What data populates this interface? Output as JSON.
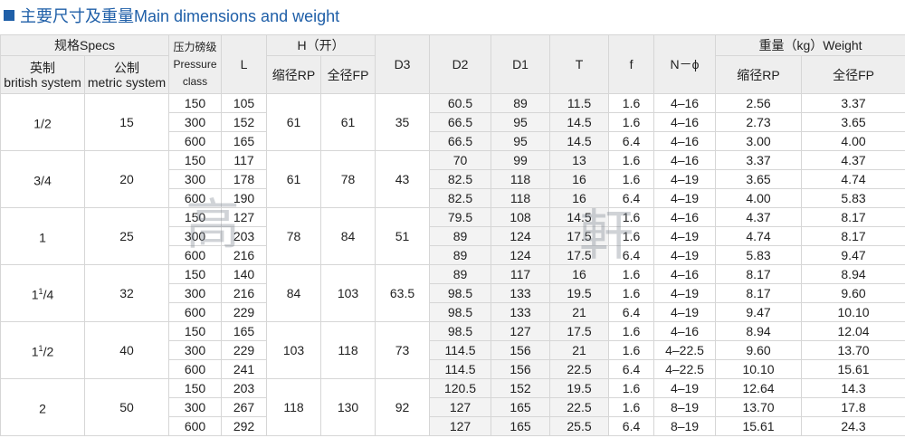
{
  "title": "主要尺寸及重量Main dimensions and weight",
  "headers": {
    "specs": "规格Specs",
    "british": "英制",
    "british_en": "british system",
    "metric": "公制",
    "metric_en": "metric system",
    "pressure": "压力磅级",
    "pressure_en1": "Pressure",
    "pressure_en2": "class",
    "L": "L",
    "H": "H（开）",
    "H_rp": "缩径RP",
    "H_fp": "全径FP",
    "D3": "D3",
    "D2": "D2",
    "D1": "D1",
    "T": "T",
    "f": "f",
    "N": "N－ϕ",
    "weight": "重量（kg）Weight",
    "w_rp": "缩径RP",
    "w_fp": "全径FP"
  },
  "groups": [
    {
      "british_main": "1/2",
      "british_sup": "",
      "british_tail": "",
      "metric": "15",
      "H_rp": "61",
      "H_fp": "61",
      "D3": "35",
      "rows": [
        {
          "pc": "150",
          "L": "105",
          "D2": "60.5",
          "D1": "89",
          "T": "11.5",
          "f": "1.6",
          "N": "4–16",
          "w_rp": "2.56",
          "w_fp": "3.37"
        },
        {
          "pc": "300",
          "L": "152",
          "D2": "66.5",
          "D1": "95",
          "T": "14.5",
          "f": "1.6",
          "N": "4–16",
          "w_rp": "2.73",
          "w_fp": "3.65"
        },
        {
          "pc": "600",
          "L": "165",
          "D2": "66.5",
          "D1": "95",
          "T": "14.5",
          "f": "6.4",
          "N": "4–16",
          "w_rp": "3.00",
          "w_fp": "4.00"
        }
      ]
    },
    {
      "british_main": "3/4",
      "british_sup": "",
      "british_tail": "",
      "metric": "20",
      "H_rp": "61",
      "H_fp": "78",
      "D3": "43",
      "rows": [
        {
          "pc": "150",
          "L": "117",
          "D2": "70",
          "D1": "99",
          "T": "13",
          "f": "1.6",
          "N": "4–16",
          "w_rp": "3.37",
          "w_fp": "4.37"
        },
        {
          "pc": "300",
          "L": "178",
          "D2": "82.5",
          "D1": "118",
          "T": "16",
          "f": "1.6",
          "N": "4–19",
          "w_rp": "3.65",
          "w_fp": "4.74"
        },
        {
          "pc": "600",
          "L": "190",
          "D2": "82.5",
          "D1": "118",
          "T": "16",
          "f": "6.4",
          "N": "4–19",
          "w_rp": "4.00",
          "w_fp": "5.83"
        }
      ]
    },
    {
      "british_main": "1",
      "british_sup": "",
      "british_tail": "",
      "metric": "25",
      "H_rp": "78",
      "H_fp": "84",
      "D3": "51",
      "rows": [
        {
          "pc": "150",
          "L": "127",
          "D2": "79.5",
          "D1": "108",
          "T": "14.5",
          "f": "1.6",
          "N": "4–16",
          "w_rp": "4.37",
          "w_fp": "8.17"
        },
        {
          "pc": "300",
          "L": "203",
          "D2": "89",
          "D1": "124",
          "T": "17.5",
          "f": "1.6",
          "N": "4–19",
          "w_rp": "4.74",
          "w_fp": "8.17"
        },
        {
          "pc": "600",
          "L": "216",
          "D2": "89",
          "D1": "124",
          "T": "17.5",
          "f": "6.4",
          "N": "4–19",
          "w_rp": "5.83",
          "w_fp": "9.47"
        }
      ]
    },
    {
      "british_main": "1",
      "british_sup": "1",
      "british_tail": "/4",
      "metric": "32",
      "H_rp": "84",
      "H_fp": "103",
      "D3": "63.5",
      "rows": [
        {
          "pc": "150",
          "L": "140",
          "D2": "89",
          "D1": "117",
          "T": "16",
          "f": "1.6",
          "N": "4–16",
          "w_rp": "8.17",
          "w_fp": "8.94"
        },
        {
          "pc": "300",
          "L": "216",
          "D2": "98.5",
          "D1": "133",
          "T": "19.5",
          "f": "1.6",
          "N": "4–19",
          "w_rp": "8.17",
          "w_fp": "9.60"
        },
        {
          "pc": "600",
          "L": "229",
          "D2": "98.5",
          "D1": "133",
          "T": "21",
          "f": "6.4",
          "N": "4–19",
          "w_rp": "9.47",
          "w_fp": "10.10"
        }
      ]
    },
    {
      "british_main": "1",
      "british_sup": "1",
      "british_tail": "/2",
      "metric": "40",
      "H_rp": "103",
      "H_fp": "118",
      "D3": "73",
      "rows": [
        {
          "pc": "150",
          "L": "165",
          "D2": "98.5",
          "D1": "127",
          "T": "17.5",
          "f": "1.6",
          "N": "4–16",
          "w_rp": "8.94",
          "w_fp": "12.04"
        },
        {
          "pc": "300",
          "L": "229",
          "D2": "114.5",
          "D1": "156",
          "T": "21",
          "f": "1.6",
          "N": "4–22.5",
          "w_rp": "9.60",
          "w_fp": "13.70"
        },
        {
          "pc": "600",
          "L": "241",
          "D2": "114.5",
          "D1": "156",
          "T": "22.5",
          "f": "6.4",
          "N": "4–22.5",
          "w_rp": "10.10",
          "w_fp": "15.61"
        }
      ]
    },
    {
      "british_main": "2",
      "british_sup": "",
      "british_tail": "",
      "metric": "50",
      "H_rp": "118",
      "H_fp": "130",
      "D3": "92",
      "rows": [
        {
          "pc": "150",
          "L": "203",
          "D2": "120.5",
          "D1": "152",
          "T": "19.5",
          "f": "1.6",
          "N": "4–19",
          "w_rp": "12.64",
          "w_fp": "14.3"
        },
        {
          "pc": "300",
          "L": "267",
          "D2": "127",
          "D1": "165",
          "T": "22.5",
          "f": "1.6",
          "N": "8–19",
          "w_rp": "13.70",
          "w_fp": "17.8"
        },
        {
          "pc": "600",
          "L": "292",
          "D2": "127",
          "D1": "165",
          "T": "25.5",
          "f": "6.4",
          "N": "8–19",
          "w_rp": "15.61",
          "w_fp": "24.3"
        }
      ]
    }
  ],
  "watermark_chars": [
    "高",
    "軒"
  ],
  "colors": {
    "title": "#1f5fa8",
    "header_bg": "#eeeeee",
    "border": "#d6d6d6"
  }
}
